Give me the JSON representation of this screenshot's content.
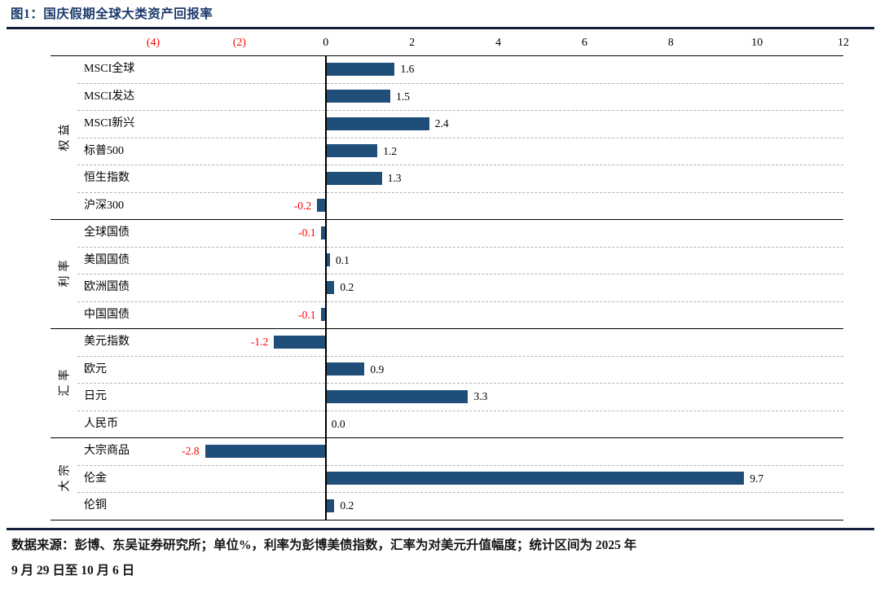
{
  "header": {
    "title": "图1：国庆假期全球大类资产回报率"
  },
  "footer": {
    "line1": "数据来源：彭博、东吴证券研究所；单位%，利率为彭博美债指数，汇率为对美元升值幅度；统计区间为 2025 年",
    "line2": "9 月 29 日至 10 月 6 日"
  },
  "chart_data": {
    "type": "bar",
    "orientation": "horizontal",
    "title": "国庆假期全球大类资产回报率",
    "unit": "%",
    "xlim": [
      -4,
      12
    ],
    "grid": "dashed-row-separators",
    "x_ticks": [
      {
        "value": -4,
        "label": "(4)"
      },
      {
        "value": -2,
        "label": "(2)"
      },
      {
        "value": 0,
        "label": "0"
      },
      {
        "value": 2,
        "label": "2"
      },
      {
        "value": 4,
        "label": "4"
      },
      {
        "value": 6,
        "label": "6"
      },
      {
        "value": 8,
        "label": "8"
      },
      {
        "value": 10,
        "label": "10"
      },
      {
        "value": 12,
        "label": "12"
      }
    ],
    "groups": [
      {
        "name": "权益",
        "items": [
          {
            "label": "MSCI全球",
            "value": 1.6,
            "value_label": "1.6"
          },
          {
            "label": "MSCI发达",
            "value": 1.5,
            "value_label": "1.5"
          },
          {
            "label": "MSCI新兴",
            "value": 2.4,
            "value_label": "2.4"
          },
          {
            "label": "标普500",
            "value": 1.2,
            "value_label": "1.2"
          },
          {
            "label": "恒生指数",
            "value": 1.3,
            "value_label": "1.3"
          },
          {
            "label": "沪深300",
            "value": -0.2,
            "value_label": "-0.2"
          }
        ]
      },
      {
        "name": "利率",
        "items": [
          {
            "label": "全球国债",
            "value": -0.1,
            "value_label": "-0.1"
          },
          {
            "label": "美国国债",
            "value": 0.1,
            "value_label": "0.1"
          },
          {
            "label": "欧洲国债",
            "value": 0.2,
            "value_label": "0.2"
          },
          {
            "label": "中国国债",
            "value": -0.1,
            "value_label": "-0.1"
          }
        ]
      },
      {
        "name": "汇率",
        "items": [
          {
            "label": "美元指数",
            "value": -1.2,
            "value_label": "-1.2"
          },
          {
            "label": "欧元",
            "value": 0.9,
            "value_label": "0.9"
          },
          {
            "label": "日元",
            "value": 3.3,
            "value_label": "3.3"
          },
          {
            "label": "人民币",
            "value": 0.0,
            "value_label": "0.0"
          }
        ]
      },
      {
        "name": "大宗",
        "items": [
          {
            "label": "大宗商品",
            "value": -2.8,
            "value_label": "-2.8"
          },
          {
            "label": "伦金",
            "value": 9.7,
            "value_label": "9.7"
          },
          {
            "label": "伦铜",
            "value": 0.2,
            "value_label": "0.2"
          }
        ]
      }
    ],
    "colors": {
      "bar": "#1F4E79",
      "positive_label": "#000000",
      "negative_label": "#FF0000",
      "negative_tick": "#FF0000",
      "axis_line": "#000000"
    }
  }
}
